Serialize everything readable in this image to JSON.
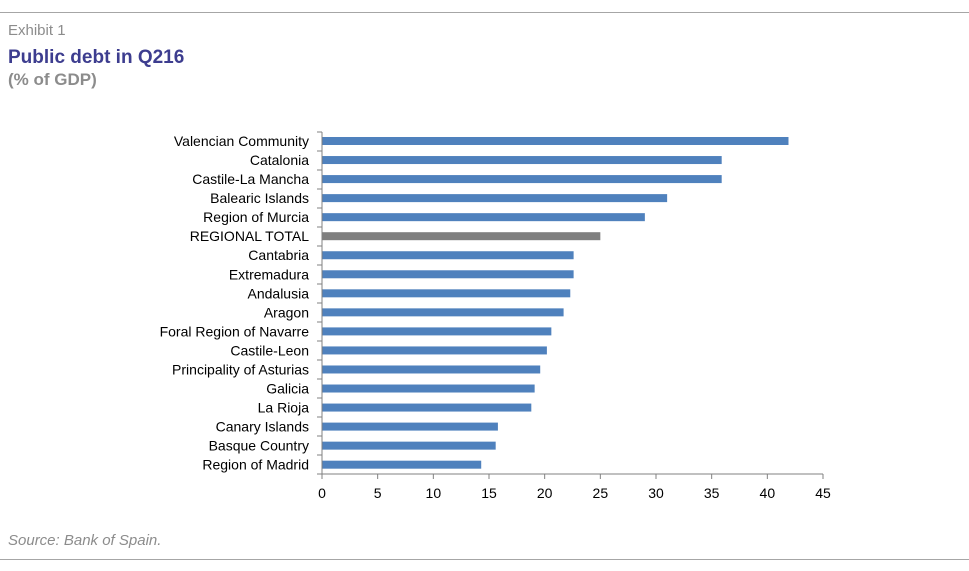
{
  "header": {
    "exhibit": "Exhibit 1",
    "title": "Public debt in Q216",
    "subtitle": "(% of GDP)"
  },
  "footer": {
    "source": "Source: Bank of Spain."
  },
  "colors": {
    "bar": "#4f81bd",
    "highlight_bar": "#7f7f7f",
    "title": "#3d3d8f",
    "muted_text": "#8c8c8c",
    "rule": "#a6a6a6"
  },
  "chart_data": {
    "type": "bar",
    "orientation": "horizontal",
    "title": "Public debt in Q216",
    "subtitle": "(% of GDP)",
    "xlabel": "",
    "ylabel": "",
    "xlim": [
      0,
      45
    ],
    "xticks": [
      0,
      5,
      10,
      15,
      20,
      25,
      30,
      35,
      40,
      45
    ],
    "grid": false,
    "legend": "none",
    "highlight": "REGIONAL TOTAL",
    "categories": [
      "Valencian Community",
      "Catalonia",
      "Castile-La Mancha",
      "Balearic Islands",
      "Region of Murcia",
      "REGIONAL TOTAL",
      "Cantabria",
      "Extremadura",
      "Andalusia",
      "Aragon",
      "Foral Region of Navarre",
      "Castile-Leon",
      "Principality of Asturias",
      "Galicia",
      "La Rioja",
      "Canary Islands",
      "Basque Country",
      "Region of Madrid"
    ],
    "values": [
      41.9,
      35.9,
      35.9,
      31.0,
      29.0,
      25.0,
      22.6,
      22.6,
      22.3,
      21.7,
      20.6,
      20.2,
      19.6,
      19.1,
      18.8,
      15.8,
      15.6,
      14.3
    ]
  }
}
